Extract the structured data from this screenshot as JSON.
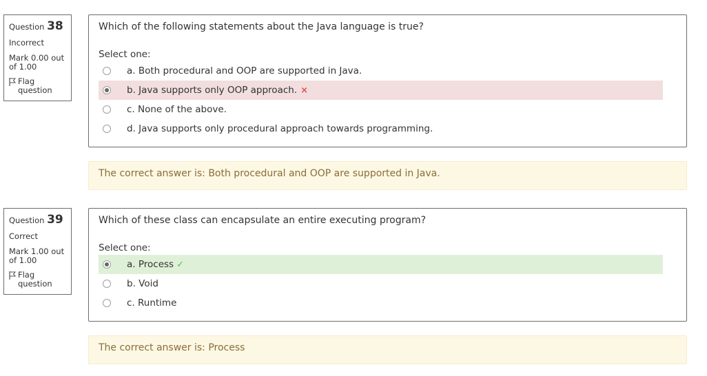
{
  "questions": [
    {
      "label": "Question",
      "number": "38",
      "state": "Incorrect",
      "grade": "Mark 0.00 out of 1.00",
      "flag": "Flag question",
      "text": "Which of the following statements about the Java language is true?",
      "prompt": "Select one:",
      "options": [
        {
          "label": "a. Both procedural and OOP are supported in Java.",
          "selected": false
        },
        {
          "label": "b. Java supports only OOP approach.",
          "selected": true,
          "result": "incorrect"
        },
        {
          "label": "c. None of the above.",
          "selected": false
        },
        {
          "label": "d. Java supports only procedural approach towards programming.",
          "selected": false
        }
      ],
      "feedback": "The correct answer is: Both procedural and OOP are supported in Java."
    },
    {
      "label": "Question",
      "number": "39",
      "state": "Correct",
      "grade": "Mark 1.00 out of 1.00",
      "flag": "Flag question",
      "text": "Which of these class can encapsulate an entire executing program?",
      "prompt": "Select one:",
      "options": [
        {
          "label": "a. Process",
          "selected": true,
          "result": "correct"
        },
        {
          "label": "b. Void",
          "selected": false
        },
        {
          "label": "c. Runtime",
          "selected": false
        }
      ],
      "feedback": "The correct answer is: Process"
    }
  ],
  "marks": {
    "incorrect_glyph": "×",
    "correct_glyph": "✓"
  },
  "colors": {
    "incorrect_bg": "#f2dede",
    "correct_bg": "#dff0d8",
    "feedback_bg": "#fcf8e3",
    "feedback_text": "#8a6d3b"
  }
}
